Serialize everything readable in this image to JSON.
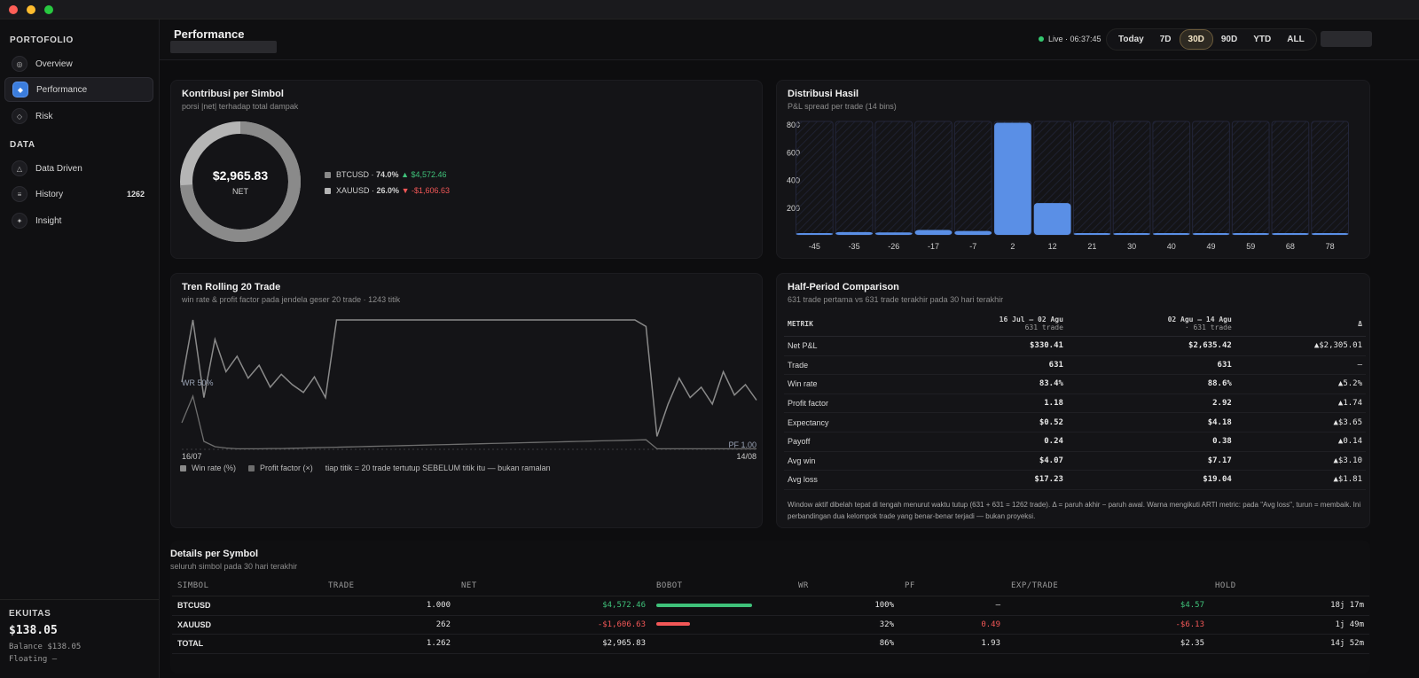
{
  "sidebar": {
    "section_portfolio": "PORTOFOLIO",
    "section_data": "DATA",
    "items": [
      {
        "label": "Overview",
        "icon": "target-icon"
      },
      {
        "label": "Performance",
        "icon": "diamond-icon"
      },
      {
        "label": "Risk",
        "icon": "diamond-outline-icon"
      },
      {
        "label": "Data Driven",
        "icon": "triangle-icon"
      },
      {
        "label": "History",
        "icon": "list-icon",
        "count": "1262"
      },
      {
        "label": "Insight",
        "icon": "sparkle-icon"
      }
    ],
    "equity": {
      "label": "EKUITAS",
      "value": "$138.05",
      "balance": "Balance $138.05",
      "floating": "Floating —"
    }
  },
  "header": {
    "title": "Performance",
    "live": "Live · 06:37:45",
    "ranges": [
      "Today",
      "7D",
      "30D",
      "90D",
      "YTD",
      "ALL"
    ],
    "active_range": "30D"
  },
  "contrib": {
    "title": "Kontribusi per Simbol",
    "subtitle": "porsi |net| terhadap total dampak",
    "center_value": "$2,965.83",
    "center_label": "NET",
    "rows": [
      {
        "symbol": "BTCUSD",
        "pct": "74.0%",
        "arrow": "▲",
        "value": "$4,572.46",
        "share": 0.74,
        "color": "#8a8a8a"
      },
      {
        "symbol": "XAUUSD",
        "pct": "26.0%",
        "arrow": "▼",
        "value": "-$1,606.63",
        "share": 0.26,
        "color": "#b5b5b5"
      }
    ]
  },
  "chart_data": [
    {
      "type": "bar",
      "title": "Distribusi Hasil",
      "subtitle": "P&L spread per trade (14 bins)",
      "categories": [
        "-45",
        "-35",
        "-26",
        "-17",
        "-7",
        "2",
        "12",
        "21",
        "30",
        "40",
        "49",
        "59",
        "68",
        "78"
      ],
      "values": [
        2,
        20,
        18,
        35,
        28,
        810,
        230,
        5,
        3,
        2,
        2,
        1,
        1,
        1
      ],
      "yticks": [
        "800",
        "600",
        "400",
        "200"
      ],
      "ylim": [
        0,
        820
      ],
      "color": "#5a8fe6"
    },
    {
      "type": "line",
      "title": "Tren Rolling 20 Trade",
      "subtitle": "win rate & profit factor pada jendela geser 20 trade · 1243 titik",
      "x_start": "16/07",
      "x_end": "14/08",
      "ref_wr_label": "WR 50%",
      "ref_pf_label": "PF 1.00",
      "note": "tiap titik = 20 trade tertutup SEBELUM titik itu — bukan ramalan",
      "series": [
        {
          "name": "Win rate (%)",
          "color": "#8a8a8a",
          "values": [
            52,
            100,
            40,
            85,
            60,
            72,
            55,
            65,
            48,
            58,
            50,
            44,
            56,
            40,
            100,
            100,
            100,
            100,
            100,
            100,
            100,
            100,
            100,
            100,
            100,
            100,
            100,
            100,
            100,
            100,
            100,
            100,
            100,
            100,
            100,
            100,
            100,
            100,
            100,
            100,
            100,
            100,
            95,
            10,
            35,
            55,
            40,
            48,
            35,
            60,
            42,
            50,
            38
          ]
        },
        {
          "name": "Profit factor (×)",
          "color": "#6e6e6e",
          "values": [
            1.0,
            2.0,
            0.3,
            0.1,
            0.05,
            0.02,
            0.02,
            0.02,
            0.03,
            0.03,
            0.04,
            0.05,
            0.06,
            0.07,
            0.08,
            0.09,
            0.1,
            0.11,
            0.12,
            0.13,
            0.14,
            0.15,
            0.16,
            0.17,
            0.18,
            0.19,
            0.2,
            0.21,
            0.22,
            0.23,
            0.24,
            0.25,
            0.26,
            0.27,
            0.28,
            0.29,
            0.3,
            0.31,
            0.32,
            0.33,
            0.34,
            0.35,
            0.36,
            0.02,
            0.02,
            0.02,
            0.02,
            0.02,
            0.02,
            0.02,
            0.02,
            0.02,
            0.02
          ]
        }
      ]
    }
  ],
  "half": {
    "title": "Half-Period Comparison",
    "subtitle": "631 trade pertama vs 631 trade terakhir pada 30 hari terakhir",
    "col_metric": "METRIK",
    "col_a": "16 Jul – 02 Agu",
    "col_a_sub": "631 trade",
    "col_b": "02 Agu – 14 Agu",
    "col_b_sub": "· 631 trade",
    "col_delta": "Δ",
    "rows": [
      {
        "m": "Net P&L",
        "a": "$330.41",
        "b": "$2,635.42",
        "d": "▲$2,305.01"
      },
      {
        "m": "Trade",
        "a": "631",
        "b": "631",
        "d": "—"
      },
      {
        "m": "Win rate",
        "a": "83.4%",
        "b": "88.6%",
        "d": "▲5.2%"
      },
      {
        "m": "Profit factor",
        "a": "1.18",
        "b": "2.92",
        "d": "▲1.74"
      },
      {
        "m": "Expectancy",
        "a": "$0.52",
        "b": "$4.18",
        "d": "▲$3.65"
      },
      {
        "m": "Payoff",
        "a": "0.24",
        "b": "0.38",
        "d": "▲0.14"
      },
      {
        "m": "Avg win",
        "a": "$4.07",
        "b": "$7.17",
        "d": "▲$3.10"
      },
      {
        "m": "Avg loss",
        "a": "$17.23",
        "b": "$19.04",
        "d": "▲$1.81"
      }
    ],
    "note": "Window aktif dibelah tepat di tengah menurut waktu tutup (631 + 631 = 1262 trade). Δ = paruh akhir − paruh awal. Warna mengikuti ARTI metric: pada \"Avg loss\", turun = membaik. Ini perbandingan dua kelompok trade yang benar-benar terjadi — bukan proyeksi."
  },
  "details": {
    "title": "Details per Symbol",
    "subtitle": "seluruh simbol pada 30 hari terakhir",
    "columns": [
      "SIMBOL",
      "TRADE",
      "NET",
      "BOBOT",
      "WR",
      "PF",
      "EXP/TRADE",
      "HOLD"
    ],
    "rows": [
      {
        "symbol": "BTCUSD",
        "trade": "1.000",
        "net": "$4,572.46",
        "weight": 0.74,
        "weight_color": "#3fc27a",
        "wr": "100%",
        "pf": "—",
        "exp": "$4.57",
        "hold": "18j 17m"
      },
      {
        "symbol": "XAUUSD",
        "trade": "262",
        "net": "-$1,606.63",
        "weight": 0.26,
        "weight_color": "#f25757",
        "wr": "32%",
        "pf": "0.49",
        "exp": "-$6.13",
        "hold": "1j 49m"
      },
      {
        "symbol": "TOTAL",
        "trade": "1.262",
        "net": "$2,965.83",
        "weight": 0,
        "weight_color": "#000000",
        "wr": "86%",
        "pf": "1.93",
        "exp": "$2.35",
        "hold": "14j 52m"
      }
    ]
  }
}
